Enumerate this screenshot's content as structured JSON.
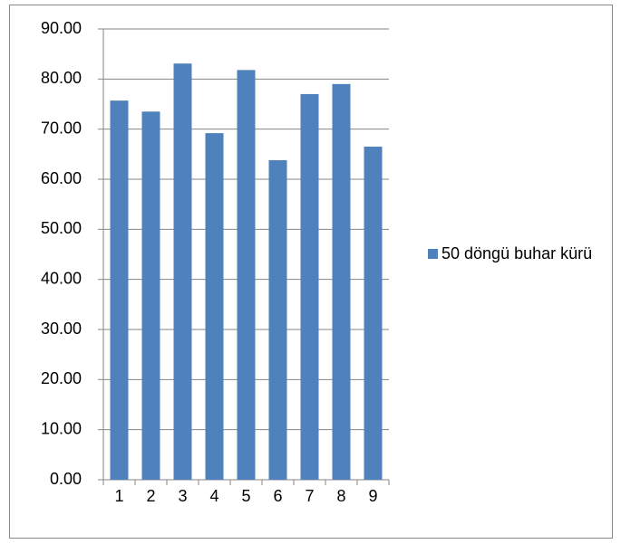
{
  "chart_data": {
    "type": "bar",
    "categories": [
      "1",
      "2",
      "3",
      "4",
      "5",
      "6",
      "7",
      "8",
      "9"
    ],
    "series": [
      {
        "name": "50 döngü buhar kürü",
        "color": "#4f81bd",
        "values": [
          75.7,
          73.5,
          83.1,
          69.2,
          81.8,
          63.8,
          77.0,
          79.0,
          66.5
        ]
      }
    ],
    "ylim": [
      0,
      90
    ],
    "yticks": [
      {
        "value": 0,
        "label": "0.00"
      },
      {
        "value": 10,
        "label": "10.00"
      },
      {
        "value": 20,
        "label": "20.00"
      },
      {
        "value": 30,
        "label": "30.00"
      },
      {
        "value": 40,
        "label": "40.00"
      },
      {
        "value": 50,
        "label": "50.00"
      },
      {
        "value": 60,
        "label": "60.00"
      },
      {
        "value": 70,
        "label": "70.00"
      },
      {
        "value": 80,
        "label": "80.00"
      },
      {
        "value": 90,
        "label": "90.00"
      }
    ],
    "grid": true,
    "legend": "right"
  }
}
